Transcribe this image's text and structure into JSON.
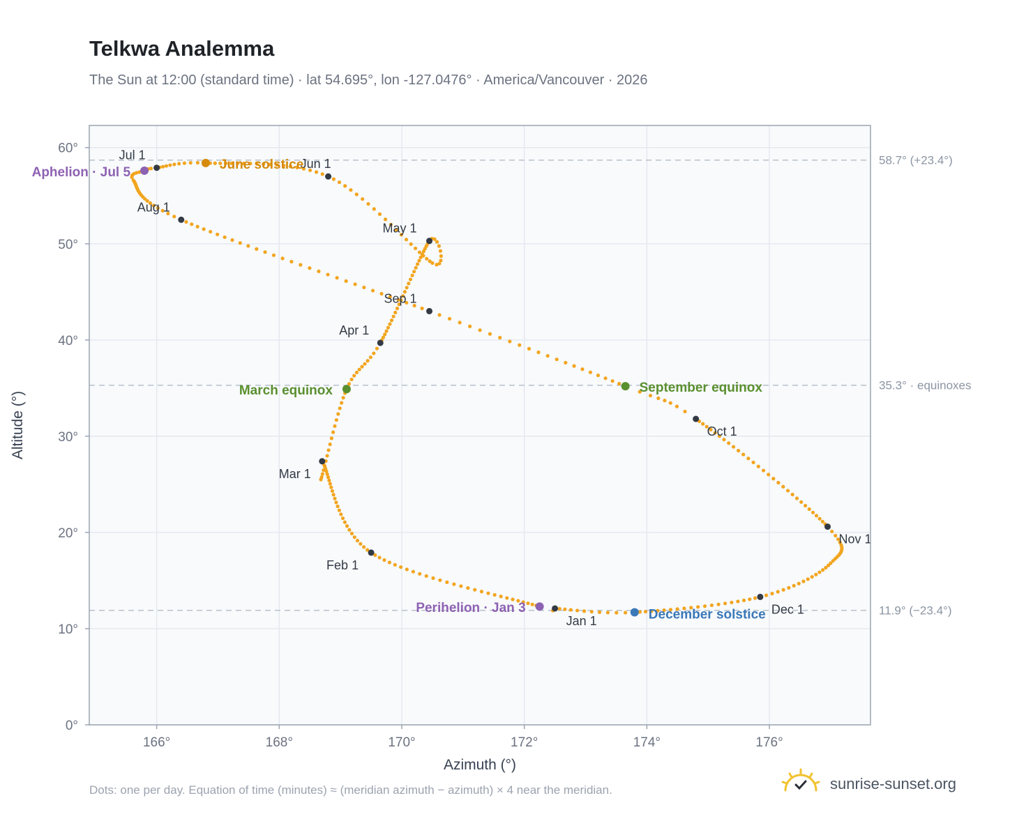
{
  "title": "Telkwa Analemma",
  "subtitle": "The Sun at 12:00 (standard time) · lat 54.695°, lon -127.0476° · America/Vancouver · 2026",
  "footnote": "Dots: one per day. Equation of time (minutes) ≈ (meridian azimuth − azimuth) × 4 near the meridian.",
  "brand": {
    "text": "sunrise-sunset.org",
    "icon": "sun-check-icon"
  },
  "colors": {
    "analemma": "#f2a51f",
    "month_dot": "#333a44",
    "june_solstice": "#d68a0c",
    "december_solstice": "#3a78b8",
    "equinox": "#5a8f2f",
    "apsis": "#8e62b3",
    "plot_bg": "#f8fafc",
    "grid": "#e5e9ef",
    "ref_line": "#b8c1cc"
  },
  "chart_data": {
    "type": "scatter",
    "title": "Telkwa Analemma",
    "xlabel": "Azimuth (°)",
    "ylabel": "Altitude (°)",
    "xlim": [
      164.9,
      177.65
    ],
    "ylim": [
      0,
      62.3
    ],
    "x_ticks": [
      166,
      168,
      170,
      172,
      174,
      176
    ],
    "x_tick_labels": [
      "166°",
      "168°",
      "170°",
      "172°",
      "174°",
      "176°"
    ],
    "y_ticks": [
      0,
      10,
      20,
      30,
      40,
      50,
      60
    ],
    "y_tick_labels": [
      "0°",
      "10°",
      "20°",
      "30°",
      "40°",
      "50°",
      "60°"
    ],
    "grid": true,
    "reference_lines": [
      {
        "y": 58.7,
        "label": "58.7° (+23.4°)"
      },
      {
        "y": 35.3,
        "label": "35.3° · equinoxes"
      },
      {
        "y": 11.9,
        "label": "11.9° (−23.4°)"
      }
    ],
    "months": [
      {
        "label": "Jan 1",
        "azimuth": 172.5,
        "altitude": 12.1
      },
      {
        "label": "Feb 1",
        "azimuth": 169.5,
        "altitude": 17.9
      },
      {
        "label": "Mar 1",
        "azimuth": 168.7,
        "altitude": 27.4
      },
      {
        "label": "Apr 1",
        "azimuth": 169.65,
        "altitude": 39.7
      },
      {
        "label": "May 1",
        "azimuth": 170.45,
        "altitude": 50.3
      },
      {
        "label": "Jun 1",
        "azimuth": 168.8,
        "altitude": 57.0
      },
      {
        "label": "Jul 1",
        "azimuth": 166.0,
        "altitude": 57.9
      },
      {
        "label": "Aug 1",
        "azimuth": 166.4,
        "altitude": 52.5
      },
      {
        "label": "Sep 1",
        "azimuth": 170.45,
        "altitude": 43.0
      },
      {
        "label": "Oct 1",
        "azimuth": 174.8,
        "altitude": 31.8
      },
      {
        "label": "Nov 1",
        "azimuth": 176.95,
        "altitude": 20.6
      },
      {
        "label": "Dec 1",
        "azimuth": 175.85,
        "altitude": 13.3
      }
    ],
    "events": [
      {
        "label": "June solstice",
        "azimuth": 166.8,
        "altitude": 58.4,
        "color_key": "june_solstice"
      },
      {
        "label": "December solstice",
        "azimuth": 173.8,
        "altitude": 11.7,
        "color_key": "december_solstice"
      },
      {
        "label": "March equinox",
        "azimuth": 169.1,
        "altitude": 34.9,
        "color_key": "equinox"
      },
      {
        "label": "September equinox",
        "azimuth": 173.65,
        "altitude": 35.2,
        "color_key": "equinox"
      },
      {
        "label": "Aphelion · Jul 5",
        "azimuth": 165.8,
        "altitude": 57.6,
        "color_key": "apsis"
      },
      {
        "label": "Perihelion · Jan 3",
        "azimuth": 172.25,
        "altitude": 12.3,
        "color_key": "apsis"
      }
    ]
  }
}
